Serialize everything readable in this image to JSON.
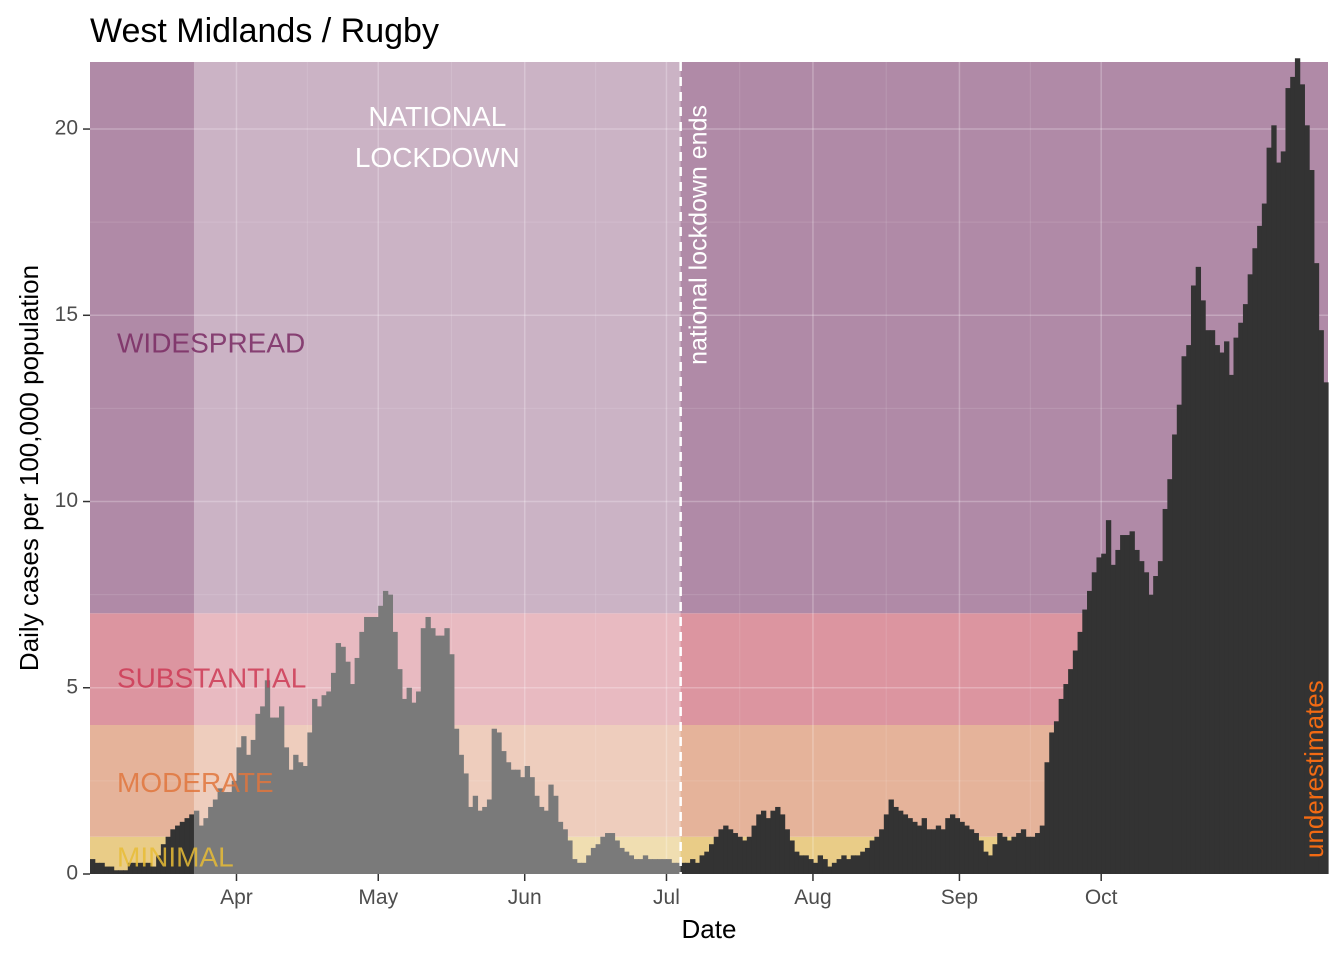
{
  "chart_data": {
    "type": "bar",
    "title": "West Midlands / Rugby",
    "xlabel": "Date",
    "ylabel": "Daily cases per 100,000 population",
    "x_start": "2020-03-01",
    "ylim": [
      0,
      21.8
    ],
    "y_ticks": [
      0,
      5,
      10,
      15,
      20
    ],
    "x_ticks": [
      {
        "label": "Apr",
        "date": "2020-04-01"
      },
      {
        "label": "May",
        "date": "2020-05-01"
      },
      {
        "label": "Jun",
        "date": "2020-06-01"
      },
      {
        "label": "Jul",
        "date": "2020-07-01"
      },
      {
        "label": "Aug",
        "date": "2020-08-01"
      },
      {
        "label": "Sep",
        "date": "2020-09-01"
      },
      {
        "label": "Oct",
        "date": "2020-10-01"
      }
    ],
    "grid": true,
    "colors": {
      "bar": "#333333",
      "widespread": "#b08aa7",
      "substantial": "#dc95a0",
      "moderate": "#e5b39a",
      "minimal": "#e9cc87",
      "widespread_text": "#7a2a63",
      "substantial_text": "#cc3a55",
      "moderate_text": "#e0753d",
      "minimal_text": "#e8bc36",
      "underestimates_text": "#f26a13"
    },
    "bands": [
      {
        "label": "MINIMAL",
        "from": 0,
        "to": 1
      },
      {
        "label": "MODERATE",
        "from": 1,
        "to": 4
      },
      {
        "label": "SUBSTANTIAL",
        "from": 4,
        "to": 7
      },
      {
        "label": "WIDESPREAD",
        "from": 7,
        "to": 21.8
      }
    ],
    "lockdown": {
      "label_line1": "NATIONAL",
      "label_line2": "LOCKDOWN",
      "start": "2020-03-23",
      "end": "2020-07-04"
    },
    "vline": {
      "label": "national lockdown ends",
      "date": "2020-07-04"
    },
    "underestimates_label": "underestimates",
    "values": [
      0.4,
      0.3,
      0.3,
      0.2,
      0.2,
      0.1,
      0.1,
      0.1,
      0.3,
      0.3,
      0.3,
      0.3,
      0.3,
      0.2,
      0.5,
      0.8,
      1.0,
      1.2,
      1.3,
      1.4,
      1.5,
      1.6,
      1.7,
      1.3,
      1.5,
      1.8,
      2.0,
      2.3,
      2.2,
      2.2,
      2.5,
      3.4,
      3.7,
      3.2,
      3.6,
      4.3,
      4.5,
      5.2,
      4.2,
      4.2,
      4.5,
      3.4,
      2.8,
      3.2,
      3.0,
      2.9,
      3.8,
      4.7,
      4.5,
      4.8,
      4.9,
      5.4,
      6.2,
      6.1,
      5.7,
      5.1,
      5.8,
      6.5,
      6.9,
      6.9,
      6.9,
      7.2,
      7.6,
      7.5,
      6.5,
      5.5,
      4.7,
      5.0,
      4.6,
      4.9,
      6.6,
      6.9,
      6.6,
      6.4,
      6.4,
      6.6,
      5.9,
      3.9,
      3.2,
      2.7,
      1.8,
      2.1,
      1.7,
      1.8,
      2.0,
      3.9,
      3.8,
      3.3,
      3.0,
      2.8,
      2.8,
      2.6,
      2.9,
      2.6,
      2.1,
      1.8,
      1.7,
      2.4,
      2.1,
      1.4,
      1.2,
      0.9,
      0.4,
      0.3,
      0.3,
      0.5,
      0.7,
      0.8,
      1.0,
      1.1,
      1.1,
      0.9,
      0.7,
      0.6,
      0.5,
      0.4,
      0.4,
      0.5,
      0.4,
      0.4,
      0.4,
      0.4,
      0.4,
      0.3,
      0.3,
      0.3,
      0.3,
      0.4,
      0.3,
      0.5,
      0.6,
      0.8,
      1.0,
      1.2,
      1.3,
      1.2,
      1.1,
      1.0,
      0.9,
      1.0,
      1.3,
      1.6,
      1.7,
      1.5,
      1.7,
      1.8,
      1.6,
      1.2,
      0.9,
      0.6,
      0.5,
      0.5,
      0.4,
      0.3,
      0.5,
      0.4,
      0.2,
      0.3,
      0.4,
      0.5,
      0.4,
      0.5,
      0.5,
      0.6,
      0.7,
      0.9,
      1.0,
      1.2,
      1.6,
      2.0,
      1.8,
      1.7,
      1.6,
      1.5,
      1.4,
      1.3,
      1.5,
      1.2,
      1.2,
      1.3,
      1.2,
      1.5,
      1.6,
      1.5,
      1.4,
      1.3,
      1.2,
      1.1,
      0.9,
      0.6,
      0.5,
      0.8,
      1.1,
      1.0,
      0.9,
      1.0,
      1.1,
      1.2,
      1.0,
      1.0,
      1.1,
      1.3,
      3.0,
      3.8,
      4.1,
      4.7,
      5.1,
      5.5,
      6.0,
      6.5,
      7.1,
      7.6,
      8.1,
      8.5,
      8.6,
      9.5,
      8.3,
      8.7,
      9.1,
      9.1,
      9.2,
      8.7,
      8.4,
      8.1,
      7.5,
      8.0,
      8.4,
      9.8,
      10.6,
      11.8,
      12.6,
      13.9,
      14.2,
      15.8,
      16.3,
      15.4,
      14.6,
      14.6,
      14.2,
      14.0,
      14.3,
      13.4,
      14.4,
      14.8,
      15.3,
      16.1,
      16.8,
      17.4,
      18.0,
      19.5,
      20.1,
      19.1,
      19.4,
      21.1,
      21.4,
      21.9,
      21.2,
      20.1,
      18.9,
      16.4,
      14.6,
      13.2
    ]
  }
}
